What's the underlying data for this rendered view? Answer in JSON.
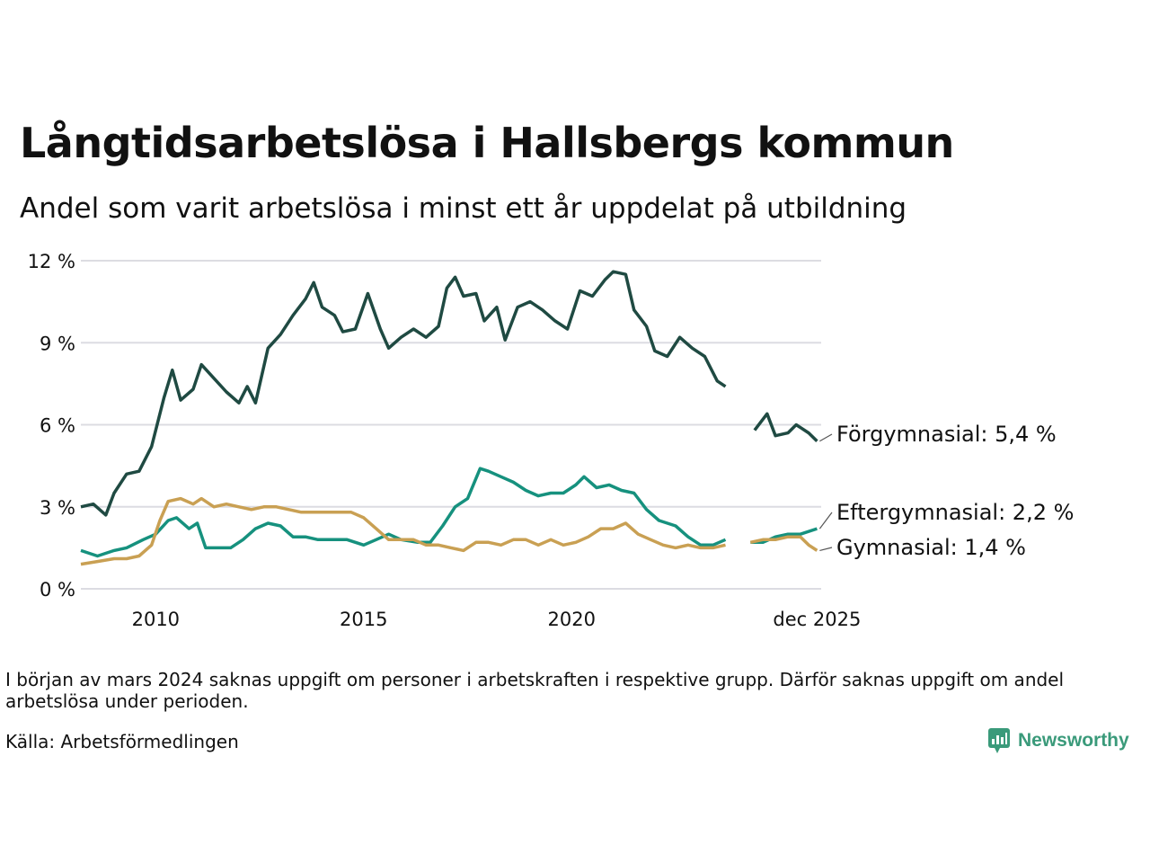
{
  "header": {
    "title": "Långtidsarbetslösa i Hallsbergs kommun",
    "subtitle": "Andel som varit arbetslösa i minst ett år uppdelat på utbildning"
  },
  "footer": {
    "note": "I början av mars 2024 saknas uppgift om personer i arbetskraften i respektive grupp. Därför saknas uppgift om andel arbetslösa under perioden.",
    "source": "Källa: Arbetsförmedlingen",
    "brand": "Newsworthy"
  },
  "colors": {
    "grid": "#dcdce2",
    "brand": "#3a9a7a",
    "forgymnasial": "#1f4a42",
    "eftergymnasial": "#16917e",
    "gymnasial": "#c9a053"
  },
  "chart_data": {
    "type": "line",
    "x_unit": "year (decimal)",
    "xlim": [
      2008.2,
      2026.0
    ],
    "ylim": [
      0,
      12
    ],
    "yticks": [
      0,
      3,
      6,
      9,
      12
    ],
    "ytick_labels": [
      "0 %",
      "3 %",
      "6 %",
      "9 %",
      "12 %"
    ],
    "xticks": [
      2010,
      2015,
      2020,
      2025.9
    ],
    "xtick_labels": [
      "2010",
      "2015",
      "2020",
      "dec 2025"
    ],
    "missing_period": [
      2023.9,
      2024.2
    ],
    "series": [
      {
        "name": "Förgymnasial",
        "label": "Förgymnasial: 5,4 %",
        "color": "#1f4a42",
        "points": [
          [
            2008.2,
            3.0
          ],
          [
            2008.5,
            3.1
          ],
          [
            2008.8,
            2.7
          ],
          [
            2009.0,
            3.5
          ],
          [
            2009.3,
            4.2
          ],
          [
            2009.6,
            4.3
          ],
          [
            2009.9,
            5.2
          ],
          [
            2010.2,
            7.0
          ],
          [
            2010.4,
            8.0
          ],
          [
            2010.6,
            6.9
          ],
          [
            2010.9,
            7.3
          ],
          [
            2011.1,
            8.2
          ],
          [
            2011.4,
            7.7
          ],
          [
            2011.7,
            7.2
          ],
          [
            2012.0,
            6.8
          ],
          [
            2012.2,
            7.4
          ],
          [
            2012.4,
            6.8
          ],
          [
            2012.7,
            8.8
          ],
          [
            2013.0,
            9.3
          ],
          [
            2013.3,
            10.0
          ],
          [
            2013.6,
            10.6
          ],
          [
            2013.8,
            11.2
          ],
          [
            2014.0,
            10.3
          ],
          [
            2014.3,
            10.0
          ],
          [
            2014.5,
            9.4
          ],
          [
            2014.8,
            9.5
          ],
          [
            2015.1,
            10.8
          ],
          [
            2015.4,
            9.5
          ],
          [
            2015.6,
            8.8
          ],
          [
            2015.9,
            9.2
          ],
          [
            2016.2,
            9.5
          ],
          [
            2016.5,
            9.2
          ],
          [
            2016.8,
            9.6
          ],
          [
            2017.0,
            11.0
          ],
          [
            2017.2,
            11.4
          ],
          [
            2017.4,
            10.7
          ],
          [
            2017.7,
            10.8
          ],
          [
            2017.9,
            9.8
          ],
          [
            2018.2,
            10.3
          ],
          [
            2018.4,
            9.1
          ],
          [
            2018.7,
            10.3
          ],
          [
            2019.0,
            10.5
          ],
          [
            2019.3,
            10.2
          ],
          [
            2019.6,
            9.8
          ],
          [
            2019.9,
            9.5
          ],
          [
            2020.2,
            10.9
          ],
          [
            2020.5,
            10.7
          ],
          [
            2020.8,
            11.3
          ],
          [
            2021.0,
            11.6
          ],
          [
            2021.3,
            11.5
          ],
          [
            2021.5,
            10.2
          ],
          [
            2021.8,
            9.6
          ],
          [
            2022.0,
            8.7
          ],
          [
            2022.3,
            8.5
          ],
          [
            2022.6,
            9.2
          ],
          [
            2022.9,
            8.8
          ],
          [
            2023.2,
            8.5
          ],
          [
            2023.5,
            7.6
          ],
          [
            2023.7,
            7.4
          ],
          [
            null,
            null
          ],
          [
            2024.4,
            5.8
          ],
          [
            2024.7,
            6.4
          ],
          [
            2024.9,
            5.6
          ],
          [
            2025.2,
            5.7
          ],
          [
            2025.4,
            6.0
          ],
          [
            2025.7,
            5.7
          ],
          [
            2025.9,
            5.4
          ]
        ]
      },
      {
        "name": "Eftergymnasial",
        "label": "Eftergymnasial: 2,2 %",
        "color": "#16917e",
        "points": [
          [
            2008.2,
            1.4
          ],
          [
            2008.6,
            1.2
          ],
          [
            2009.0,
            1.4
          ],
          [
            2009.3,
            1.5
          ],
          [
            2009.7,
            1.8
          ],
          [
            2010.0,
            2.0
          ],
          [
            2010.3,
            2.5
          ],
          [
            2010.5,
            2.6
          ],
          [
            2010.8,
            2.2
          ],
          [
            2011.0,
            2.4
          ],
          [
            2011.2,
            1.5
          ],
          [
            2011.5,
            1.5
          ],
          [
            2011.8,
            1.5
          ],
          [
            2012.1,
            1.8
          ],
          [
            2012.4,
            2.2
          ],
          [
            2012.7,
            2.4
          ],
          [
            2013.0,
            2.3
          ],
          [
            2013.3,
            1.9
          ],
          [
            2013.6,
            1.9
          ],
          [
            2013.9,
            1.8
          ],
          [
            2014.2,
            1.8
          ],
          [
            2014.6,
            1.8
          ],
          [
            2015.0,
            1.6
          ],
          [
            2015.3,
            1.8
          ],
          [
            2015.6,
            2.0
          ],
          [
            2015.9,
            1.8
          ],
          [
            2016.3,
            1.7
          ],
          [
            2016.6,
            1.7
          ],
          [
            2016.9,
            2.3
          ],
          [
            2017.2,
            3.0
          ],
          [
            2017.5,
            3.3
          ],
          [
            2017.8,
            4.4
          ],
          [
            2018.0,
            4.3
          ],
          [
            2018.3,
            4.1
          ],
          [
            2018.6,
            3.9
          ],
          [
            2018.9,
            3.6
          ],
          [
            2019.2,
            3.4
          ],
          [
            2019.5,
            3.5
          ],
          [
            2019.8,
            3.5
          ],
          [
            2020.1,
            3.8
          ],
          [
            2020.3,
            4.1
          ],
          [
            2020.6,
            3.7
          ],
          [
            2020.9,
            3.8
          ],
          [
            2021.2,
            3.6
          ],
          [
            2021.5,
            3.5
          ],
          [
            2021.8,
            2.9
          ],
          [
            2022.1,
            2.5
          ],
          [
            2022.5,
            2.3
          ],
          [
            2022.8,
            1.9
          ],
          [
            2023.1,
            1.6
          ],
          [
            2023.4,
            1.6
          ],
          [
            2023.7,
            1.8
          ],
          [
            null,
            null
          ],
          [
            2024.3,
            1.7
          ],
          [
            2024.6,
            1.7
          ],
          [
            2024.9,
            1.9
          ],
          [
            2025.2,
            2.0
          ],
          [
            2025.5,
            2.0
          ],
          [
            2025.9,
            2.2
          ]
        ]
      },
      {
        "name": "Gymnasial",
        "label": "Gymnasial: 1,4 %",
        "color": "#c9a053",
        "points": [
          [
            2008.2,
            0.9
          ],
          [
            2008.6,
            1.0
          ],
          [
            2009.0,
            1.1
          ],
          [
            2009.3,
            1.1
          ],
          [
            2009.6,
            1.2
          ],
          [
            2009.9,
            1.6
          ],
          [
            2010.1,
            2.5
          ],
          [
            2010.3,
            3.2
          ],
          [
            2010.6,
            3.3
          ],
          [
            2010.9,
            3.1
          ],
          [
            2011.1,
            3.3
          ],
          [
            2011.4,
            3.0
          ],
          [
            2011.7,
            3.1
          ],
          [
            2012.0,
            3.0
          ],
          [
            2012.3,
            2.9
          ],
          [
            2012.6,
            3.0
          ],
          [
            2012.9,
            3.0
          ],
          [
            2013.2,
            2.9
          ],
          [
            2013.5,
            2.8
          ],
          [
            2013.8,
            2.8
          ],
          [
            2014.1,
            2.8
          ],
          [
            2014.4,
            2.8
          ],
          [
            2014.7,
            2.8
          ],
          [
            2015.0,
            2.6
          ],
          [
            2015.3,
            2.2
          ],
          [
            2015.6,
            1.8
          ],
          [
            2015.9,
            1.8
          ],
          [
            2016.2,
            1.8
          ],
          [
            2016.5,
            1.6
          ],
          [
            2016.8,
            1.6
          ],
          [
            2017.1,
            1.5
          ],
          [
            2017.4,
            1.4
          ],
          [
            2017.7,
            1.7
          ],
          [
            2018.0,
            1.7
          ],
          [
            2018.3,
            1.6
          ],
          [
            2018.6,
            1.8
          ],
          [
            2018.9,
            1.8
          ],
          [
            2019.2,
            1.6
          ],
          [
            2019.5,
            1.8
          ],
          [
            2019.8,
            1.6
          ],
          [
            2020.1,
            1.7
          ],
          [
            2020.4,
            1.9
          ],
          [
            2020.7,
            2.2
          ],
          [
            2021.0,
            2.2
          ],
          [
            2021.3,
            2.4
          ],
          [
            2021.6,
            2.0
          ],
          [
            2021.9,
            1.8
          ],
          [
            2022.2,
            1.6
          ],
          [
            2022.5,
            1.5
          ],
          [
            2022.8,
            1.6
          ],
          [
            2023.1,
            1.5
          ],
          [
            2023.4,
            1.5
          ],
          [
            2023.7,
            1.6
          ],
          [
            null,
            null
          ],
          [
            2024.3,
            1.7
          ],
          [
            2024.6,
            1.8
          ],
          [
            2024.9,
            1.8
          ],
          [
            2025.2,
            1.9
          ],
          [
            2025.5,
            1.9
          ],
          [
            2025.7,
            1.6
          ],
          [
            2025.9,
            1.4
          ]
        ]
      }
    ]
  }
}
